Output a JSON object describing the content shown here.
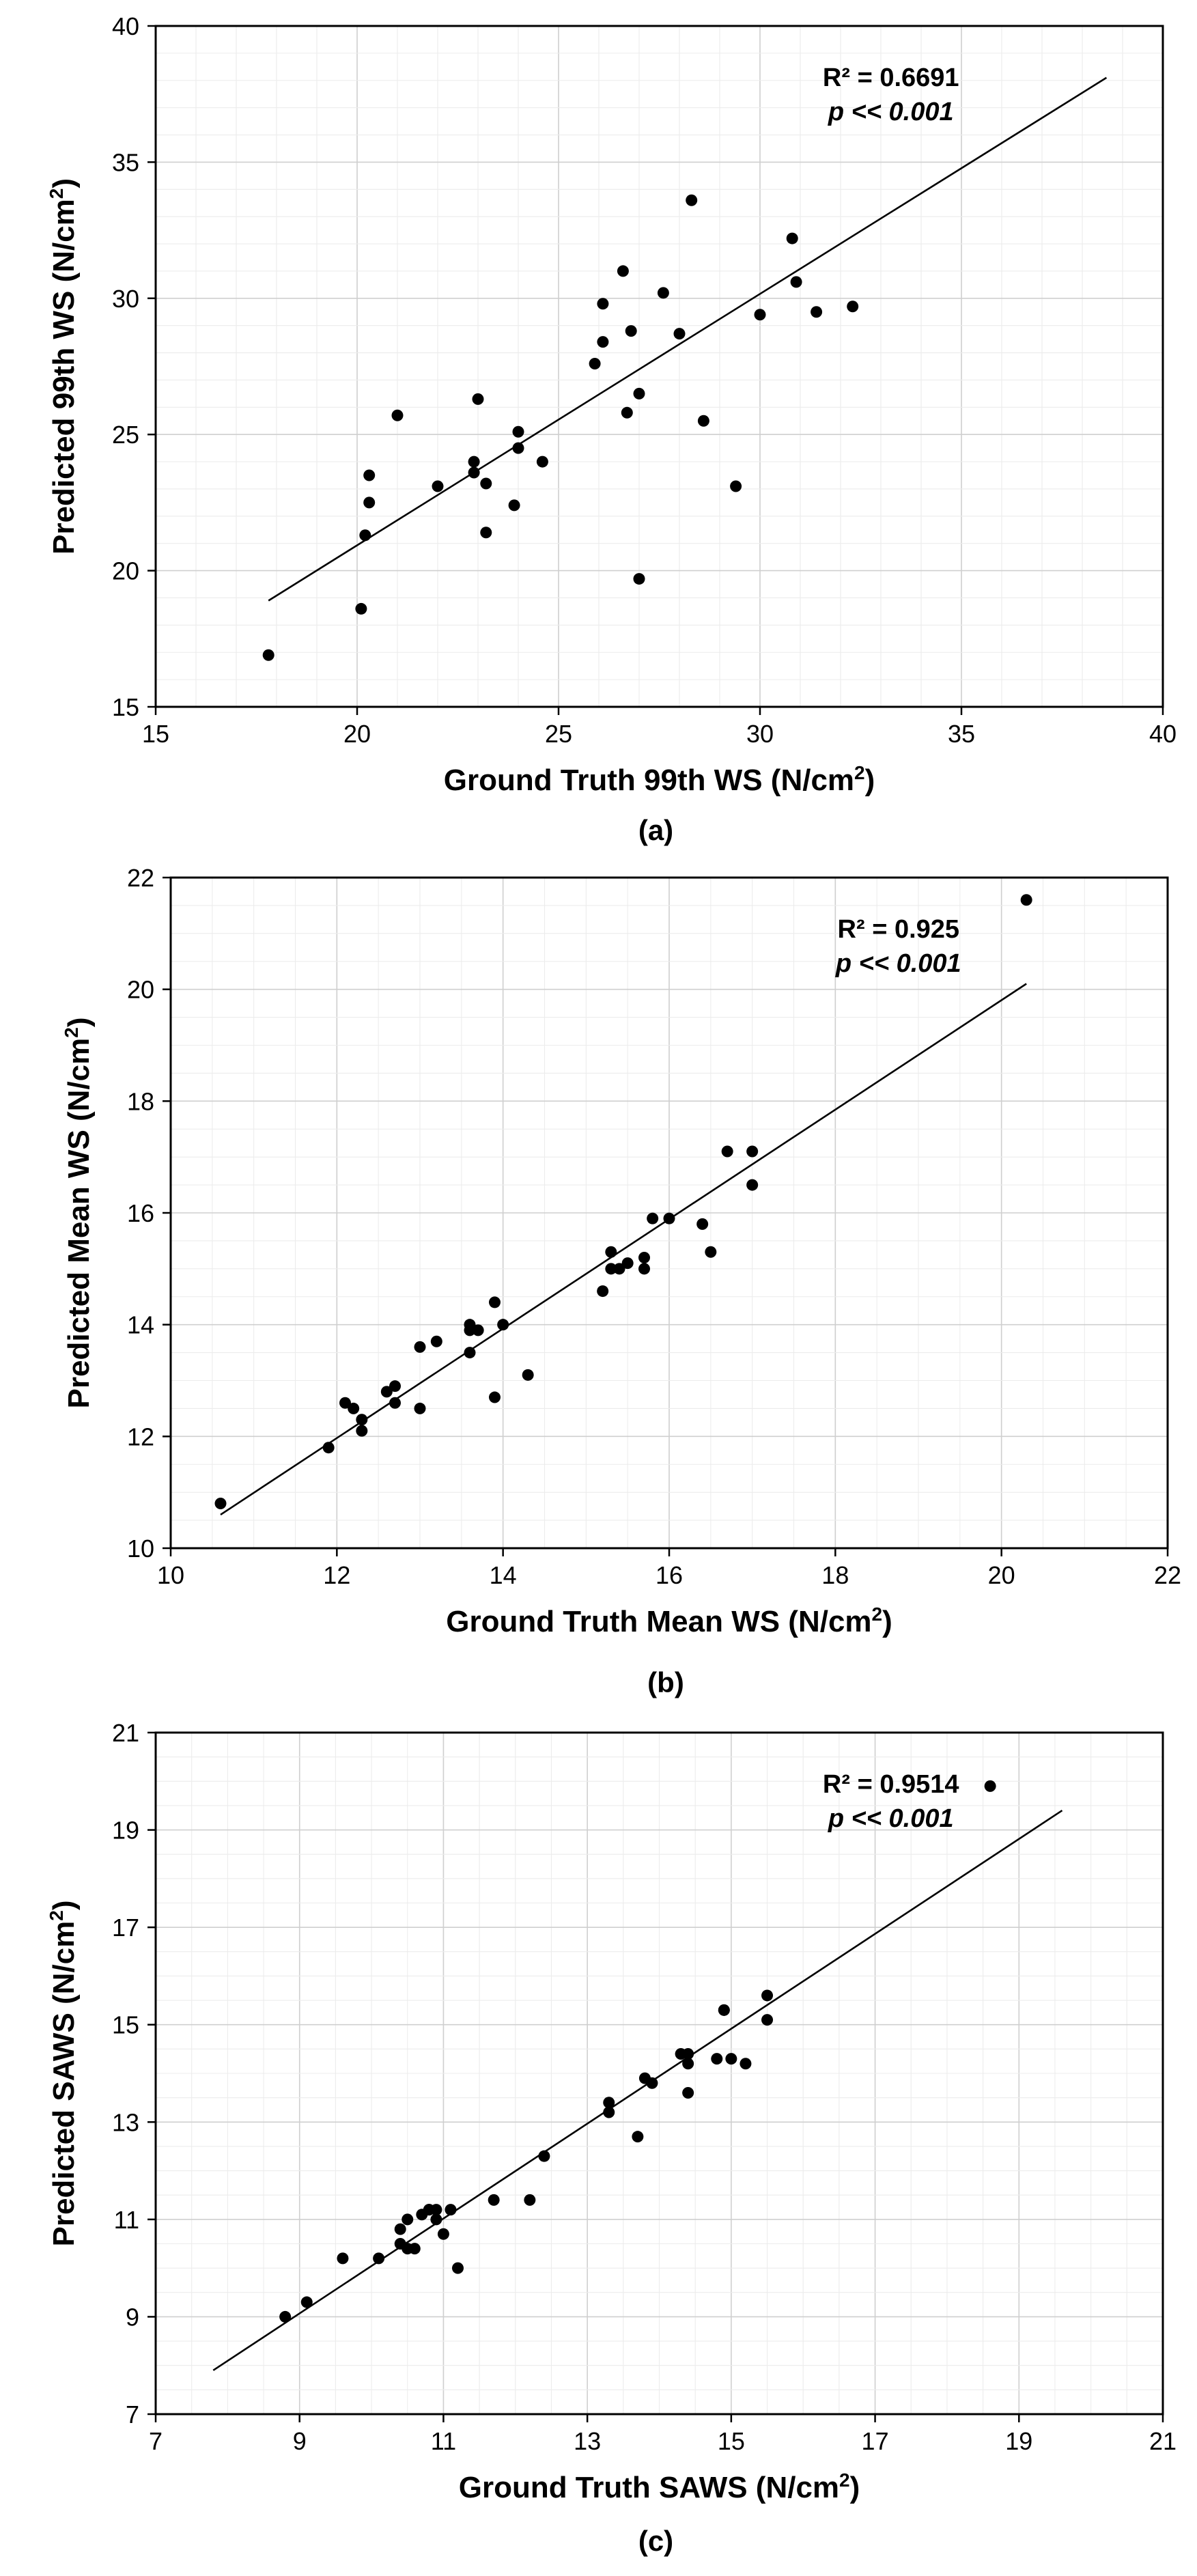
{
  "chart_data": [
    {
      "type": "scatter",
      "caption": "(a)",
      "xlabel": "Ground Truth 99th WS (N/cm",
      "ylabel": "Predicted 99th WS (N/cm",
      "unit_sup": "2",
      "unit_close": ")",
      "xlim": [
        15,
        40
      ],
      "ylim": [
        15,
        40
      ],
      "xticks": [
        15,
        20,
        25,
        30,
        35,
        40
      ],
      "yticks": [
        15,
        20,
        25,
        30,
        35,
        40
      ],
      "minor_step": 1,
      "r2_text": "R² = 0.6691",
      "p_prefix": "p",
      "p_value": "<< 0.001",
      "fit_line": [
        [
          17.8,
          18.9
        ],
        [
          38.6,
          38.1
        ]
      ],
      "points": [
        [
          17.8,
          16.9
        ],
        [
          20.1,
          18.6
        ],
        [
          20.2,
          21.3
        ],
        [
          20.3,
          23.5
        ],
        [
          20.3,
          22.5
        ],
        [
          21.0,
          25.7
        ],
        [
          22.0,
          23.1
        ],
        [
          22.9,
          23.6
        ],
        [
          22.9,
          24.0
        ],
        [
          23.0,
          26.3
        ],
        [
          23.2,
          23.2
        ],
        [
          23.2,
          21.4
        ],
        [
          23.9,
          22.4
        ],
        [
          24.0,
          24.5
        ],
        [
          24.0,
          25.1
        ],
        [
          24.6,
          24.0
        ],
        [
          25.9,
          27.6
        ],
        [
          26.1,
          29.8
        ],
        [
          26.1,
          28.4
        ],
        [
          26.6,
          31.0
        ],
        [
          26.7,
          25.8
        ],
        [
          26.8,
          28.8
        ],
        [
          27.0,
          26.5
        ],
        [
          27.0,
          19.7
        ],
        [
          27.6,
          30.2
        ],
        [
          28.0,
          28.7
        ],
        [
          28.3,
          33.6
        ],
        [
          28.6,
          25.5
        ],
        [
          29.4,
          23.1
        ],
        [
          30.0,
          29.4
        ],
        [
          30.8,
          32.2
        ],
        [
          30.9,
          30.6
        ],
        [
          31.4,
          29.5
        ],
        [
          32.3,
          29.7
        ]
      ]
    },
    {
      "type": "scatter",
      "caption": "(b)",
      "xlabel": "Ground Truth Mean WS (N/cm",
      "ylabel": "Predicted Mean WS (N/cm",
      "unit_sup": "2",
      "unit_close": ")",
      "xlim": [
        10,
        22
      ],
      "ylim": [
        10,
        22
      ],
      "xticks": [
        10,
        12,
        14,
        16,
        18,
        20,
        22
      ],
      "yticks": [
        10,
        12,
        14,
        16,
        18,
        20,
        22
      ],
      "minor_step": 0.5,
      "r2_text": "R² = 0.925",
      "p_prefix": "p",
      "p_value": "<< 0.001",
      "fit_line": [
        [
          10.6,
          10.6
        ],
        [
          20.3,
          20.1
        ]
      ],
      "points": [
        [
          10.6,
          10.8
        ],
        [
          11.9,
          11.8
        ],
        [
          12.1,
          12.6
        ],
        [
          12.2,
          12.5
        ],
        [
          12.3,
          12.1
        ],
        [
          12.3,
          12.3
        ],
        [
          12.6,
          12.8
        ],
        [
          12.7,
          12.9
        ],
        [
          12.7,
          12.6
        ],
        [
          13.0,
          13.6
        ],
        [
          13.0,
          12.5
        ],
        [
          13.2,
          13.7
        ],
        [
          13.6,
          14.0
        ],
        [
          13.6,
          13.5
        ],
        [
          13.6,
          13.9
        ],
        [
          13.7,
          13.9
        ],
        [
          13.9,
          14.4
        ],
        [
          13.9,
          12.7
        ],
        [
          14.0,
          14.0
        ],
        [
          14.3,
          13.1
        ],
        [
          15.2,
          14.6
        ],
        [
          15.3,
          15.0
        ],
        [
          15.3,
          15.3
        ],
        [
          15.4,
          15.0
        ],
        [
          15.5,
          15.1
        ],
        [
          15.7,
          15.0
        ],
        [
          15.7,
          15.2
        ],
        [
          15.8,
          15.9
        ],
        [
          16.0,
          15.9
        ],
        [
          16.4,
          15.8
        ],
        [
          16.5,
          15.3
        ],
        [
          16.7,
          17.1
        ],
        [
          17.0,
          16.5
        ],
        [
          17.0,
          17.1
        ],
        [
          20.3,
          21.6
        ]
      ]
    },
    {
      "type": "scatter",
      "caption": "(c)",
      "xlabel": "Ground Truth SAWS (N/cm",
      "ylabel": "Predicted SAWS (N/cm",
      "unit_sup": "2",
      "unit_close": ")",
      "xlim": [
        7,
        21
      ],
      "ylim": [
        7,
        21
      ],
      "xticks": [
        7,
        9,
        11,
        13,
        15,
        17,
        19,
        21
      ],
      "yticks": [
        7,
        9,
        11,
        13,
        15,
        17,
        19,
        21
      ],
      "minor_step": 0.5,
      "r2_text": "R² = 0.9514",
      "p_prefix": "p",
      "p_value": "<< 0.001",
      "fit_line": [
        [
          7.8,
          7.9
        ],
        [
          19.6,
          19.4
        ]
      ],
      "points": [
        [
          8.8,
          9.0
        ],
        [
          9.1,
          9.3
        ],
        [
          9.6,
          10.2
        ],
        [
          10.1,
          10.2
        ],
        [
          10.4,
          10.5
        ],
        [
          10.4,
          10.8
        ],
        [
          10.5,
          11.0
        ],
        [
          10.5,
          10.4
        ],
        [
          10.6,
          10.4
        ],
        [
          10.7,
          11.1
        ],
        [
          10.8,
          11.2
        ],
        [
          10.8,
          11.2
        ],
        [
          10.9,
          11.0
        ],
        [
          10.9,
          11.2
        ],
        [
          11.0,
          10.7
        ],
        [
          11.1,
          11.2
        ],
        [
          11.2,
          10.0
        ],
        [
          11.7,
          11.4
        ],
        [
          12.2,
          11.4
        ],
        [
          12.4,
          12.3
        ],
        [
          13.3,
          13.4
        ],
        [
          13.3,
          13.2
        ],
        [
          13.7,
          12.7
        ],
        [
          13.8,
          13.9
        ],
        [
          13.9,
          13.8
        ],
        [
          14.3,
          14.4
        ],
        [
          14.4,
          13.6
        ],
        [
          14.4,
          14.4
        ],
        [
          14.4,
          14.2
        ],
        [
          14.8,
          14.3
        ],
        [
          14.9,
          15.3
        ],
        [
          14.9,
          15.3
        ],
        [
          15.0,
          14.3
        ],
        [
          15.2,
          14.2
        ],
        [
          15.5,
          15.6
        ],
        [
          15.5,
          15.1
        ],
        [
          18.6,
          19.9
        ]
      ]
    }
  ]
}
